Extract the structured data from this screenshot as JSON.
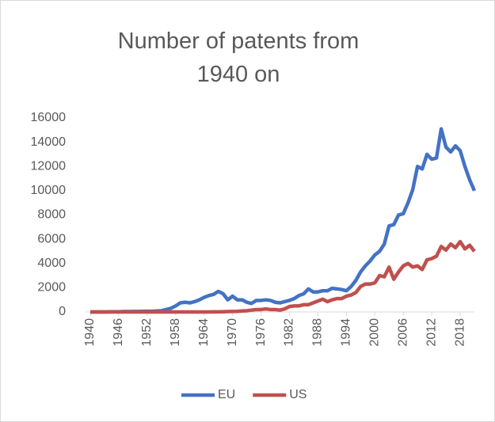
{
  "chart_data": {
    "type": "line",
    "title": "Number of patents from 1940 on",
    "x": [
      1940,
      1941,
      1942,
      1943,
      1944,
      1945,
      1946,
      1947,
      1948,
      1949,
      1950,
      1951,
      1952,
      1953,
      1954,
      1955,
      1956,
      1957,
      1958,
      1959,
      1960,
      1961,
      1962,
      1963,
      1964,
      1965,
      1966,
      1967,
      1968,
      1969,
      1970,
      1971,
      1972,
      1973,
      1974,
      1975,
      1976,
      1977,
      1978,
      1979,
      1980,
      1981,
      1982,
      1983,
      1984,
      1985,
      1986,
      1987,
      1988,
      1989,
      1990,
      1991,
      1992,
      1993,
      1994,
      1995,
      1996,
      1997,
      1998,
      1999,
      2000,
      2001,
      2002,
      2003,
      2004,
      2005,
      2006,
      2007,
      2008,
      2009,
      2010,
      2011,
      2012,
      2013,
      2014,
      2015,
      2016,
      2017,
      2018,
      2019,
      2020,
      2021
    ],
    "series": [
      {
        "name": "EU",
        "color": "#4472c4",
        "values": [
          0,
          0,
          0,
          0,
          10,
          20,
          20,
          30,
          30,
          40,
          40,
          50,
          60,
          60,
          80,
          100,
          200,
          300,
          500,
          750,
          800,
          750,
          850,
          1000,
          1200,
          1350,
          1450,
          1700,
          1500,
          1000,
          1300,
          1000,
          1000,
          800,
          700,
          950,
          950,
          1000,
          950,
          800,
          750,
          850,
          950,
          1100,
          1350,
          1500,
          1900,
          1650,
          1650,
          1750,
          1750,
          1950,
          1900,
          1850,
          1750,
          2100,
          2600,
          3300,
          3800,
          4200,
          4700,
          5000,
          5600,
          7100,
          7200,
          8000,
          8100,
          9000,
          10100,
          12000,
          11800,
          13000,
          12600,
          12700,
          15100,
          13600,
          13200,
          13700,
          13300,
          12000,
          10900,
          10000
        ]
      },
      {
        "name": "US",
        "color": "#c0504d",
        "values": [
          0,
          0,
          0,
          0,
          0,
          0,
          0,
          0,
          0,
          0,
          0,
          0,
          0,
          0,
          0,
          0,
          0,
          0,
          0,
          0,
          0,
          0,
          0,
          0,
          0,
          0,
          10,
          10,
          20,
          30,
          40,
          50,
          80,
          100,
          150,
          200,
          200,
          250,
          200,
          200,
          150,
          250,
          450,
          500,
          500,
          600,
          600,
          750,
          900,
          1050,
          850,
          1000,
          1100,
          1100,
          1300,
          1400,
          1600,
          2100,
          2300,
          2300,
          2400,
          3000,
          2900,
          3700,
          2700,
          3300,
          3800,
          4000,
          3700,
          3800,
          3500,
          4300,
          4400,
          4600,
          5400,
          5100,
          5600,
          5300,
          5800,
          5200,
          5500,
          5000
        ]
      }
    ],
    "xlim": [
      1940,
      2021
    ],
    "xticks": [
      1940,
      1946,
      1952,
      1958,
      1964,
      1970,
      1976,
      1982,
      1988,
      1994,
      2000,
      2006,
      2012,
      2018
    ],
    "ylim": [
      0,
      16000
    ],
    "yticks": [
      0,
      2000,
      4000,
      6000,
      8000,
      10000,
      12000,
      14000,
      16000
    ],
    "grid": false,
    "legend": "bottom"
  }
}
